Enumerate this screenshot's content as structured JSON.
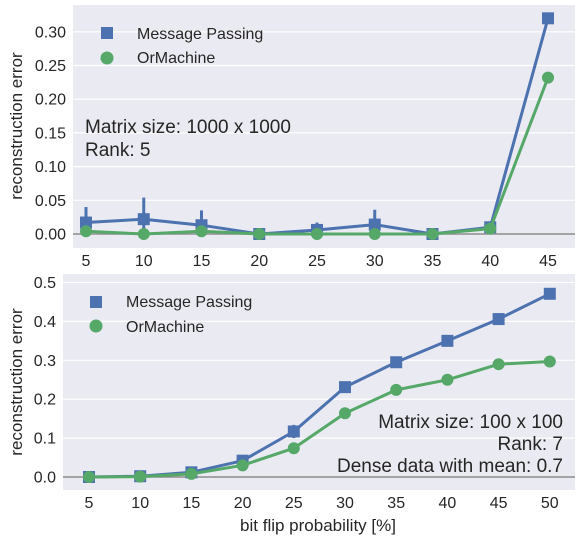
{
  "chart_data": [
    {
      "type": "line",
      "ylabel": "reconstruction error",
      "xlabel": "",
      "x": [
        5,
        10,
        15,
        20,
        25,
        30,
        35,
        40,
        45
      ],
      "x_tick_labels": [
        "5",
        "10",
        "15",
        "20",
        "25",
        "30",
        "35",
        "40",
        "45"
      ],
      "ylim": [
        -0.01,
        0.33
      ],
      "y_ticks": [
        0.0,
        0.05,
        0.1,
        0.15,
        0.2,
        0.25,
        0.3
      ],
      "y_tick_labels": [
        "0.00",
        "0.05",
        "0.10",
        "0.15",
        "0.20",
        "0.25",
        "0.30"
      ],
      "grid": true,
      "legend_position": "top-left",
      "series": [
        {
          "name": "Message Passing",
          "marker": "square",
          "color": "#4c72b0",
          "values": [
            0.017,
            0.022,
            0.013,
            0.0,
            0.006,
            0.014,
            0.0,
            0.01,
            0.32
          ],
          "err_low": [
            0.005,
            0.008,
            0.005,
            0.0,
            0.002,
            0.005,
            0.0,
            0.006,
            0.32
          ],
          "err_high": [
            0.04,
            0.054,
            0.035,
            0.0,
            0.017,
            0.036,
            0.0,
            0.014,
            0.32
          ]
        },
        {
          "name": "OrMachine",
          "marker": "circle",
          "color": "#55a868",
          "values": [
            0.004,
            0.0,
            0.004,
            0.0,
            0.0,
            0.0,
            0.0,
            0.008,
            0.232
          ],
          "err_low": [
            0.002,
            0.0,
            0.002,
            0.0,
            0.0,
            0.0,
            0.0,
            0.006,
            0.224
          ],
          "err_high": [
            0.006,
            0.0,
            0.006,
            0.0,
            0.0,
            0.0,
            0.0,
            0.01,
            0.24
          ]
        }
      ],
      "annotations": [
        "Matrix size: 1000 x 1000",
        "Rank: 5"
      ]
    },
    {
      "type": "line",
      "ylabel": "reconstruction error",
      "xlabel": "bit flip probability [%]",
      "x": [
        5,
        10,
        15,
        20,
        25,
        30,
        35,
        40,
        45,
        50
      ],
      "x_tick_labels": [
        "5",
        "10",
        "15",
        "20",
        "25",
        "30",
        "35",
        "40",
        "45",
        "50"
      ],
      "ylim": [
        -0.03,
        0.5
      ],
      "y_ticks": [
        0.0,
        0.1,
        0.2,
        0.3,
        0.4,
        0.5
      ],
      "y_tick_labels": [
        "0.0",
        "0.1",
        "0.2",
        "0.3",
        "0.4",
        "0.5"
      ],
      "grid": true,
      "legend_position": "top-left",
      "series": [
        {
          "name": "Message Passing",
          "marker": "square",
          "color": "#4c72b0",
          "values": [
            0.0,
            0.002,
            0.012,
            0.042,
            0.117,
            0.231,
            0.295,
            0.35,
            0.406,
            0.471
          ],
          "err_low": [
            0.0,
            0.0,
            0.008,
            0.035,
            0.1,
            0.225,
            0.29,
            0.345,
            0.4,
            0.466
          ],
          "err_high": [
            0.0,
            0.004,
            0.016,
            0.05,
            0.134,
            0.237,
            0.3,
            0.355,
            0.412,
            0.476
          ]
        },
        {
          "name": "OrMachine",
          "marker": "circle",
          "color": "#55a868",
          "values": [
            0.0,
            0.001,
            0.008,
            0.03,
            0.074,
            0.164,
            0.224,
            0.25,
            0.29,
            0.297
          ],
          "err_low": [
            0.0,
            0.0,
            0.005,
            0.025,
            0.068,
            0.158,
            0.218,
            0.238,
            0.284,
            0.284
          ],
          "err_high": [
            0.0,
            0.002,
            0.011,
            0.035,
            0.08,
            0.17,
            0.23,
            0.262,
            0.296,
            0.31
          ]
        }
      ],
      "annotations": [
        "Matrix size: 100 x 100",
        "Rank: 7",
        "Dense data with mean: 0.7"
      ]
    }
  ]
}
